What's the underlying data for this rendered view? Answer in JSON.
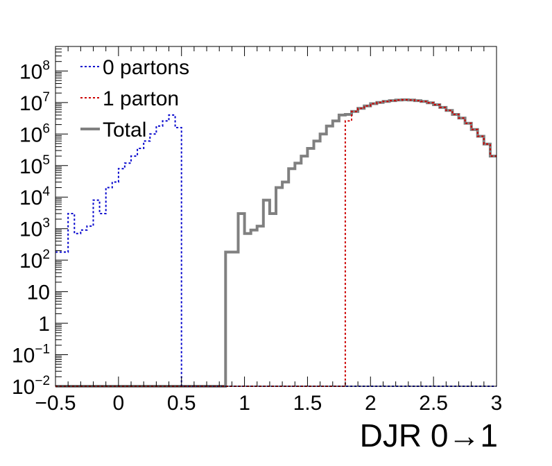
{
  "chart_data": {
    "type": "line",
    "title": "",
    "xlabel": "DJR 0→1",
    "ylabel": "",
    "x_range": [
      -0.5,
      3
    ],
    "y_range": [
      0.01,
      600000000
    ],
    "y_scale": "log",
    "grid": false,
    "legend_position": "top-left",
    "x_ticks": [
      {
        "value": -0.5,
        "label": "−0.5"
      },
      {
        "value": 0,
        "label": "0"
      },
      {
        "value": 0.5,
        "label": "0.5"
      },
      {
        "value": 1,
        "label": "1"
      },
      {
        "value": 1.5,
        "label": "1.5"
      },
      {
        "value": 2,
        "label": "2"
      },
      {
        "value": 2.5,
        "label": "2.5"
      },
      {
        "value": 3,
        "label": "3"
      }
    ],
    "y_ticks": [
      {
        "value": 0.01,
        "base": "10",
        "exp": "−2"
      },
      {
        "value": 0.1,
        "base": "10",
        "exp": "−1"
      },
      {
        "value": 1,
        "base": "1",
        "exp": ""
      },
      {
        "value": 10,
        "base": "10",
        "exp": ""
      },
      {
        "value": 100,
        "base": "10",
        "exp": "2"
      },
      {
        "value": 1000,
        "base": "10",
        "exp": "3"
      },
      {
        "value": 10000,
        "base": "10",
        "exp": "4"
      },
      {
        "value": 100000,
        "base": "10",
        "exp": "5"
      },
      {
        "value": 1000000,
        "base": "10",
        "exp": "6"
      },
      {
        "value": 10000000,
        "base": "10",
        "exp": "7"
      },
      {
        "value": 100000000,
        "base": "10",
        "exp": "8"
      }
    ],
    "bin_edges": [
      -0.5,
      -0.45,
      -0.4,
      -0.35,
      -0.3,
      -0.25,
      -0.2,
      -0.15,
      -0.1,
      -0.05,
      0,
      0.05,
      0.1,
      0.15,
      0.2,
      0.25,
      0.3,
      0.35,
      0.4,
      0.45,
      0.5,
      0.55,
      0.6,
      0.65,
      0.7,
      0.75,
      0.8,
      0.85,
      0.9,
      0.95,
      1,
      1.05,
      1.1,
      1.15,
      1.2,
      1.25,
      1.3,
      1.35,
      1.4,
      1.45,
      1.5,
      1.55,
      1.6,
      1.65,
      1.7,
      1.75,
      1.8,
      1.85,
      1.9,
      1.95,
      2,
      2.05,
      2.1,
      2.15,
      2.2,
      2.25,
      2.3,
      2.35,
      2.4,
      2.45,
      2.5,
      2.55,
      2.6,
      2.65,
      2.7,
      2.75,
      2.8,
      2.85,
      2.9,
      2.95,
      3
    ],
    "series": [
      {
        "name": "0 partons",
        "color": "#0000cc",
        "style": "dotted",
        "values": [
          180,
          180,
          3000,
          700,
          900,
          1200,
          8000,
          3000,
          20000,
          30000,
          80000,
          120000,
          200000,
          350000,
          600000,
          1000000,
          1800000,
          2600000,
          4000000,
          1600000
        ]
      },
      {
        "name": "1 parton",
        "color": "#cc0000",
        "style": "dotted",
        "values": [
          2600000,
          5200000,
          6500000,
          7800000,
          9200000,
          10000000,
          10800000,
          11500000,
          12000000,
          12200000,
          12000000,
          11500000,
          10800000,
          9800000,
          8500000,
          7000000,
          5600000,
          4200000,
          3200000,
          2200000,
          1400000,
          850000,
          480000,
          200000
        ]
      },
      {
        "name": "Total",
        "color": "#808080",
        "style": "solid",
        "values": [
          180,
          180,
          3000,
          700,
          900,
          1200,
          8000,
          3000,
          20000,
          30000,
          80000,
          120000,
          200000,
          350000,
          600000,
          1000000,
          1800000,
          2600000,
          4000000,
          4200000,
          5200000,
          6500000,
          7800000,
          9200000,
          10000000,
          10800000,
          11500000,
          12000000,
          12200000,
          12000000,
          11500000,
          10800000,
          9800000,
          8500000,
          7000000,
          5600000,
          4200000,
          3200000,
          2200000,
          1400000,
          850000,
          480000,
          200000
        ]
      }
    ]
  }
}
